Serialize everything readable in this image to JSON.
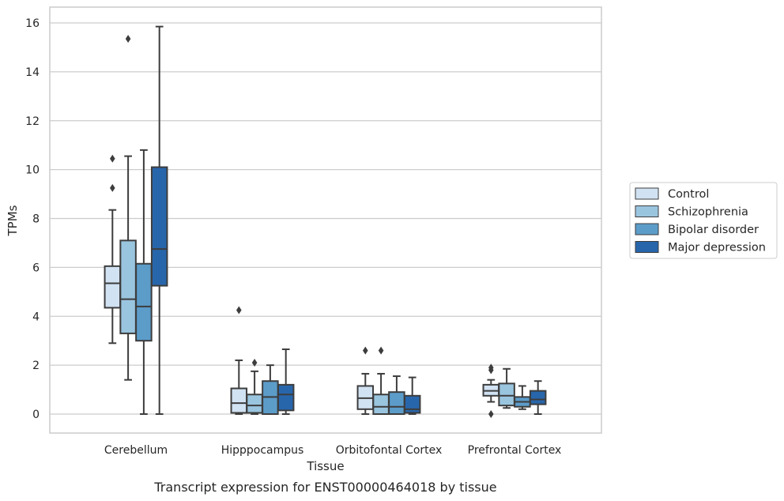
{
  "chart_data": {
    "type": "box",
    "title": "",
    "caption": "Transcript expression for ENST00000464018 by tissue",
    "xlabel": "Tissue",
    "ylabel": "TPMs",
    "ylim": [
      -0.75,
      16.6
    ],
    "yticks": [
      0,
      2,
      4,
      6,
      8,
      10,
      12,
      14,
      16
    ],
    "grid": "horizontal",
    "legend_position": "right",
    "categories": [
      "Cerebellum",
      "Hipppocampus",
      "Orbitofontal Cortex",
      "Prefrontal Cortex"
    ],
    "series": [
      {
        "name": "Control",
        "color": "#d1e2f2",
        "boxes": [
          {
            "whislo": 2.9,
            "q1": 4.35,
            "med": 5.35,
            "q3": 6.05,
            "whishi": 8.35,
            "fliers": [
              9.25,
              10.45
            ]
          },
          {
            "whislo": 0.0,
            "q1": 0.05,
            "med": 0.45,
            "q3": 1.05,
            "whishi": 2.2,
            "fliers": [
              4.25
            ]
          },
          {
            "whislo": 0.0,
            "q1": 0.2,
            "med": 0.65,
            "q3": 1.15,
            "whishi": 1.65,
            "fliers": [
              2.6
            ]
          },
          {
            "whislo": 0.5,
            "q1": 0.75,
            "med": 0.95,
            "q3": 1.2,
            "whishi": 1.4,
            "fliers": [
              0.0,
              1.8,
              1.9
            ]
          }
        ]
      },
      {
        "name": "Schizophrenia",
        "color": "#9ac5df",
        "boxes": [
          {
            "whislo": 1.4,
            "q1": 3.3,
            "med": 4.7,
            "q3": 7.1,
            "whishi": 10.55,
            "fliers": [
              15.35
            ]
          },
          {
            "whislo": 0.0,
            "q1": 0.05,
            "med": 0.35,
            "q3": 0.8,
            "whishi": 1.75,
            "fliers": [
              2.1
            ]
          },
          {
            "whislo": 0.0,
            "q1": 0.0,
            "med": 0.3,
            "q3": 0.8,
            "whishi": 1.65,
            "fliers": [
              2.6
            ]
          },
          {
            "whislo": 0.25,
            "q1": 0.35,
            "med": 0.75,
            "q3": 1.25,
            "whishi": 1.85,
            "fliers": []
          }
        ]
      },
      {
        "name": "Bipolar disorder",
        "color": "#5c9cc9",
        "boxes": [
          {
            "whislo": 0.0,
            "q1": 3.0,
            "med": 4.4,
            "q3": 6.15,
            "whishi": 10.8,
            "fliers": []
          },
          {
            "whislo": 0.0,
            "q1": 0.0,
            "med": 0.7,
            "q3": 1.35,
            "whishi": 2.0,
            "fliers": []
          },
          {
            "whislo": 0.0,
            "q1": 0.0,
            "med": 0.3,
            "q3": 0.9,
            "whishi": 1.55,
            "fliers": []
          },
          {
            "whislo": 0.2,
            "q1": 0.3,
            "med": 0.5,
            "q3": 0.7,
            "whishi": 1.15,
            "fliers": []
          }
        ]
      },
      {
        "name": "Major depression",
        "color": "#2866ab",
        "boxes": [
          {
            "whislo": 0.0,
            "q1": 5.25,
            "med": 6.75,
            "q3": 10.1,
            "whishi": 15.85,
            "fliers": []
          },
          {
            "whislo": 0.0,
            "q1": 0.15,
            "med": 0.8,
            "q3": 1.2,
            "whishi": 2.65,
            "fliers": []
          },
          {
            "whislo": 0.0,
            "q1": 0.05,
            "med": 0.2,
            "q3": 0.75,
            "whishi": 1.5,
            "fliers": []
          },
          {
            "whislo": 0.0,
            "q1": 0.4,
            "med": 0.6,
            "q3": 0.95,
            "whishi": 1.35,
            "fliers": []
          }
        ]
      }
    ]
  }
}
